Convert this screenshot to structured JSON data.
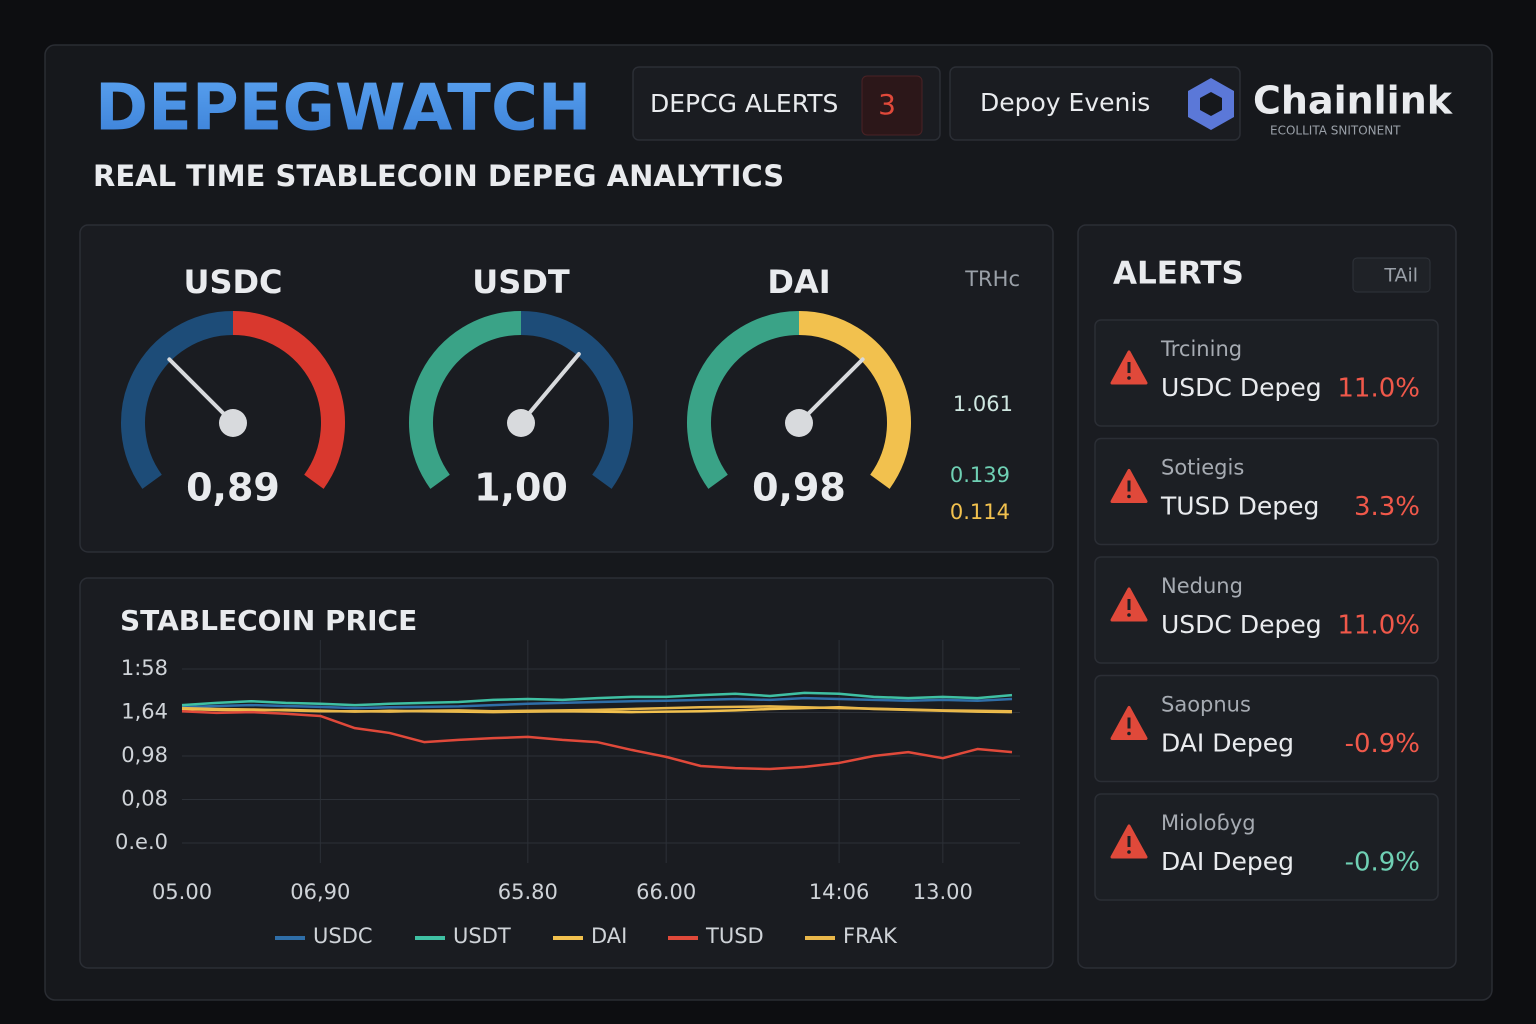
{
  "header": {
    "title": "DEPEGWATCH",
    "subtitle": "REAL TIME STABLECOIN DEPEG ANALYTICS",
    "alerts_label": "DEPCG ALERTS",
    "alerts_count": 3,
    "events_label": "Depoy Evenis",
    "brand": "Chainlink",
    "brand_tagline": "ECOLLITA SNITONENT"
  },
  "gauges": {
    "items": [
      {
        "name": "USDC",
        "value_label": "0,89",
        "colors": [
          "#1d4c78",
          "#d9382e"
        ]
      },
      {
        "name": "USDT",
        "value_label": "1,00",
        "colors": [
          "#3aa387",
          "#1d4c78"
        ]
      },
      {
        "name": "DAI",
        "value_label": "0,98",
        "colors": [
          "#3aa387",
          "#f2c14e"
        ]
      }
    ],
    "side_label": "TRHc",
    "side_values": [
      "1.061",
      "0.139",
      "0.114"
    ]
  },
  "chart_data": {
    "type": "line",
    "title": "STABLECOIN PRICE",
    "categories": [
      "05.00",
      null,
      null,
      null,
      "06,90",
      null,
      null,
      null,
      null,
      null,
      "65.80",
      null,
      null,
      null,
      "66.00",
      null,
      null,
      null,
      null,
      "14:06",
      null,
      null,
      "13.00",
      null,
      null
    ],
    "series": [
      {
        "name": "USDC",
        "color": "#2f6ea8",
        "values": [
          3.12,
          3.15,
          3.17,
          3.15,
          3.13,
          3.1,
          3.12,
          3.13,
          3.14,
          3.17,
          3.2,
          3.22,
          3.24,
          3.26,
          3.27,
          3.29,
          3.31,
          3.29,
          3.33,
          3.31,
          3.29,
          3.27,
          3.29,
          3.27,
          3.31
        ]
      },
      {
        "name": "USDT",
        "color": "#3fc0a3",
        "values": [
          3.17,
          3.22,
          3.26,
          3.22,
          3.2,
          3.17,
          3.2,
          3.22,
          3.24,
          3.29,
          3.31,
          3.29,
          3.33,
          3.36,
          3.36,
          3.4,
          3.43,
          3.38,
          3.45,
          3.43,
          3.36,
          3.33,
          3.36,
          3.33,
          3.4
        ]
      },
      {
        "name": "DAI",
        "color": "#f2c14e",
        "values": [
          3.08,
          3.06,
          3.05,
          3.06,
          3.04,
          3.02,
          3.04,
          3.03,
          3.02,
          3.01,
          3.02,
          3.03,
          3.02,
          3.01,
          3.02,
          3.03,
          3.05,
          3.08,
          3.1,
          3.12,
          3.08,
          3.06,
          3.04,
          3.02,
          3.01
        ]
      },
      {
        "name": "TUSD",
        "color": "#e0493a",
        "values": [
          3.03,
          2.99,
          3.01,
          2.97,
          2.92,
          2.64,
          2.53,
          2.32,
          2.37,
          2.41,
          2.44,
          2.37,
          2.32,
          2.14,
          1.98,
          1.77,
          1.72,
          1.7,
          1.75,
          1.84,
          2.0,
          2.09,
          1.95,
          2.16,
          2.09
        ]
      },
      {
        "name": "FRAK",
        "color": "#e9b74a",
        "values": [
          3.1,
          3.08,
          3.07,
          3.05,
          3.03,
          3.03,
          3.02,
          3.04,
          3.05,
          3.03,
          3.04,
          3.05,
          3.06,
          3.08,
          3.1,
          3.12,
          3.13,
          3.14,
          3.12,
          3.1,
          3.09,
          3.07,
          3.05,
          3.04,
          3.03
        ]
      }
    ],
    "ylim": [
      0,
      4
    ],
    "yticks": [
      {
        "value": 0,
        "label": "0.e.0"
      },
      {
        "value": 1,
        "label": "0,08"
      },
      {
        "value": 2,
        "label": "0,98"
      },
      {
        "value": 3,
        "label": "1,64"
      },
      {
        "value": 4,
        "label": "1:58"
      }
    ],
    "grid": true
  },
  "alerts": {
    "title": "ALERTS",
    "filter": "TAil",
    "items": [
      {
        "status": "Trcining",
        "name": "USDC Depeg",
        "change": "11.0%",
        "change_color": "#f0584a"
      },
      {
        "status": "Sotiegis",
        "name": "TUSD Depeg",
        "change": "3.3%",
        "change_color": "#f0584a"
      },
      {
        "status": "Nedung",
        "name": "USDC Depeg",
        "change": "11.0%",
        "change_color": "#f0584a"
      },
      {
        "status": "Saopnus",
        "name": "DAI Depeg",
        "change": "-0.9%",
        "change_color": "#f0584a"
      },
      {
        "status": "Mioloɓyg",
        "name": "DAI Depeg",
        "change": "-0.9%",
        "change_color": "#6fd0b4"
      }
    ]
  }
}
